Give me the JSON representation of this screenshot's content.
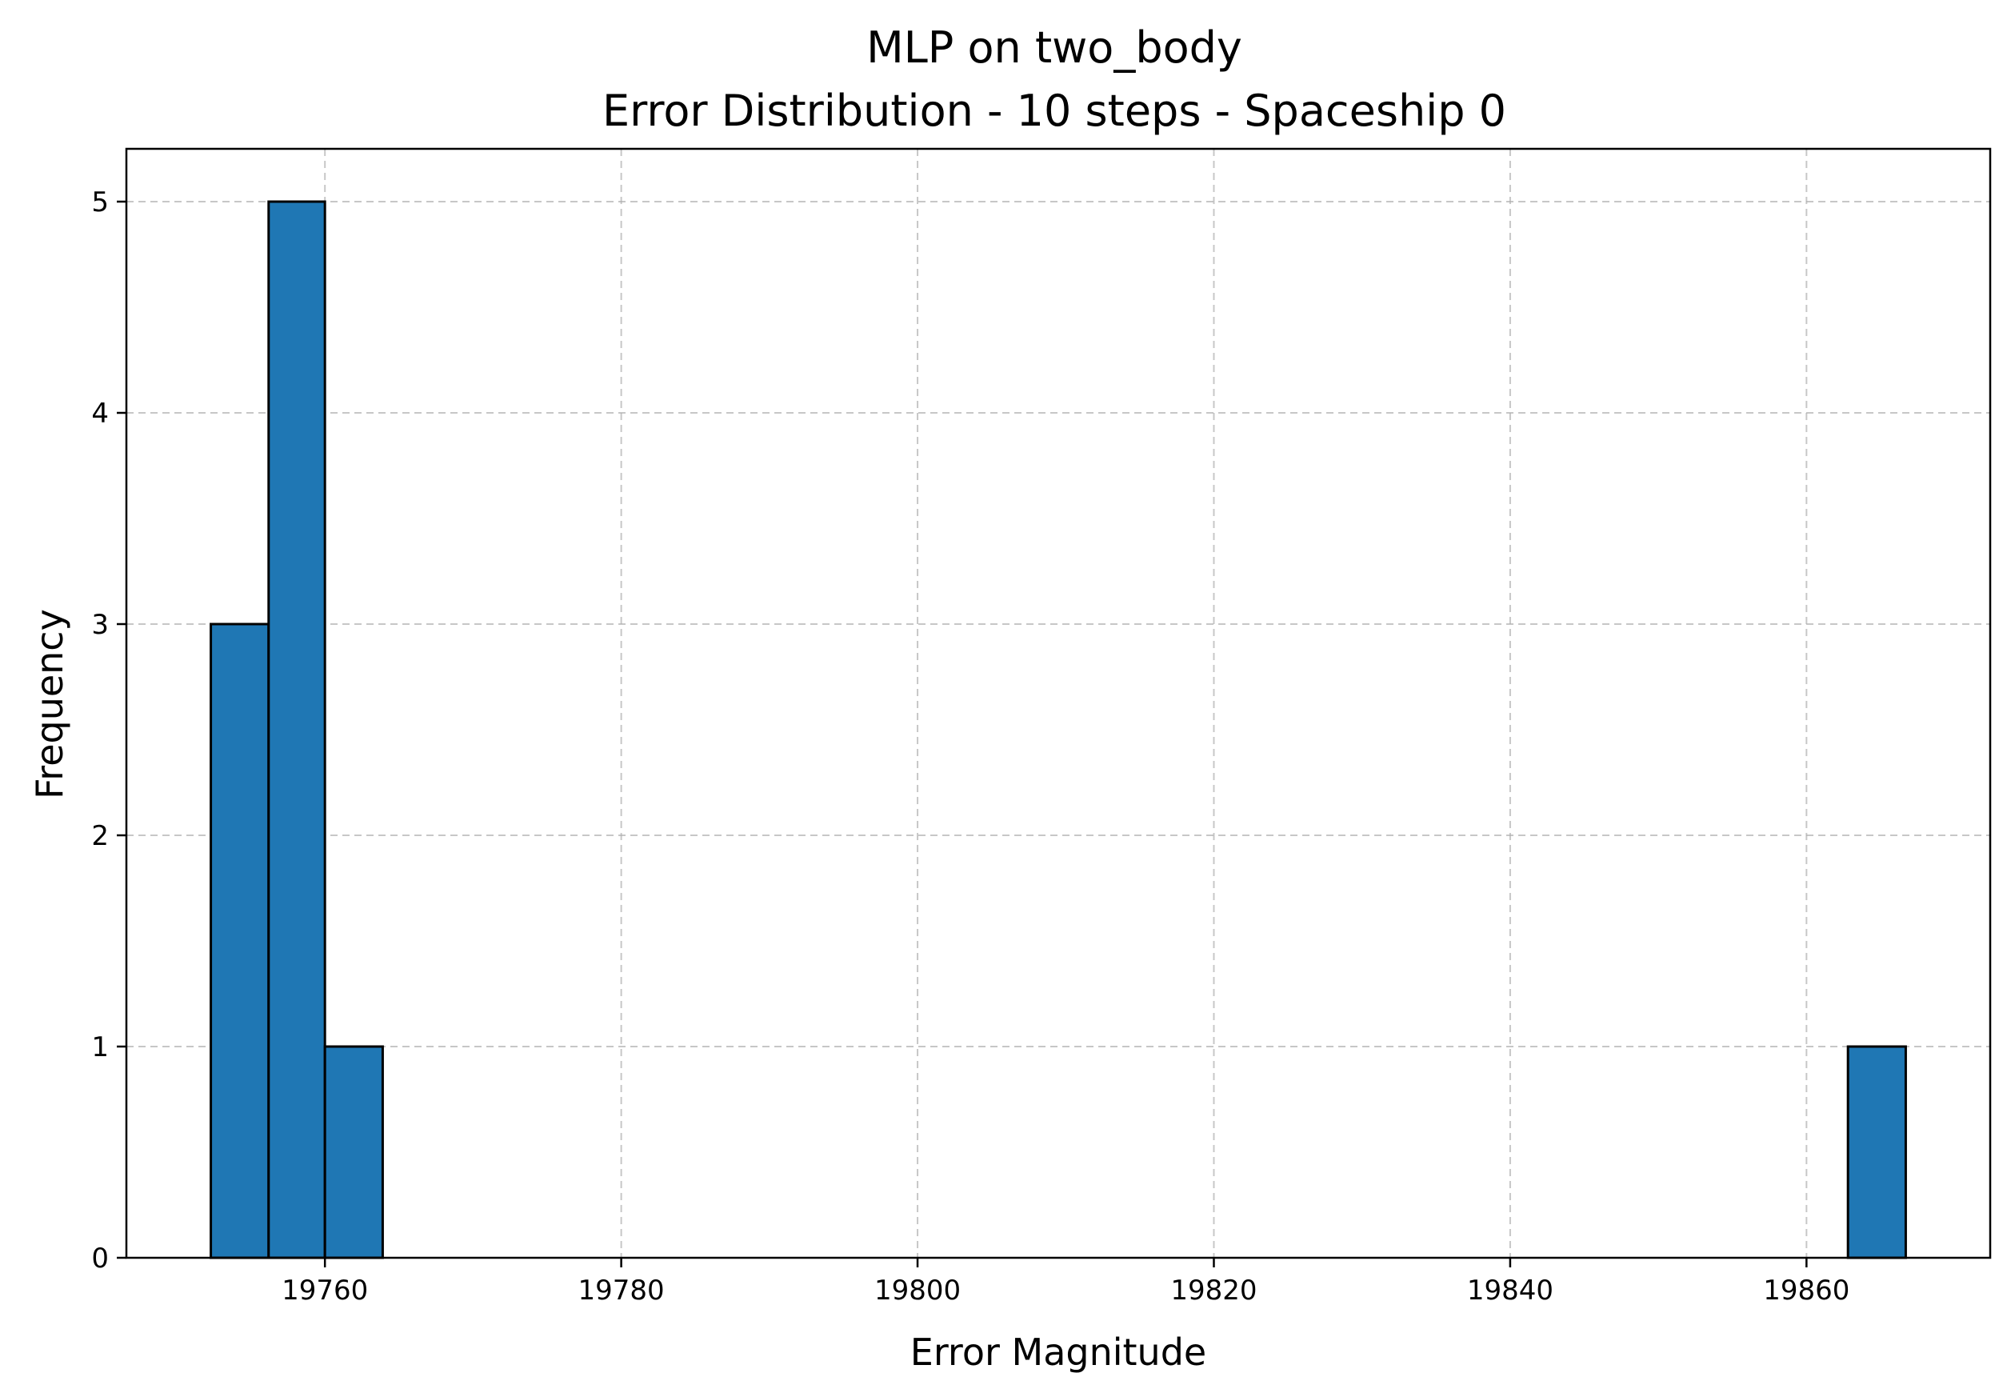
{
  "chart_data": {
    "type": "bar",
    "title_line1": "MLP on two_body",
    "title_line2": "Error Distribution - 10 steps - Spaceship 0",
    "xlabel": "Error Magnitude",
    "ylabel": "Frequency",
    "xlim": [
      19746.6,
      19872.4
    ],
    "ylim": [
      0,
      5.25
    ],
    "xticks": [
      19760,
      19780,
      19800,
      19820,
      19840,
      19860
    ],
    "yticks": [
      0,
      1,
      2,
      3,
      4,
      5
    ],
    "grid": true,
    "bar_color": "#1f77b4",
    "edge_color": "#000000",
    "bins": [
      {
        "x0": 19752.3,
        "x1": 19756.2,
        "count": 3
      },
      {
        "x0": 19756.2,
        "x1": 19760.0,
        "count": 5
      },
      {
        "x0": 19760.0,
        "x1": 19763.9,
        "count": 1
      },
      {
        "x0": 19862.8,
        "x1": 19866.7,
        "count": 1
      }
    ]
  }
}
